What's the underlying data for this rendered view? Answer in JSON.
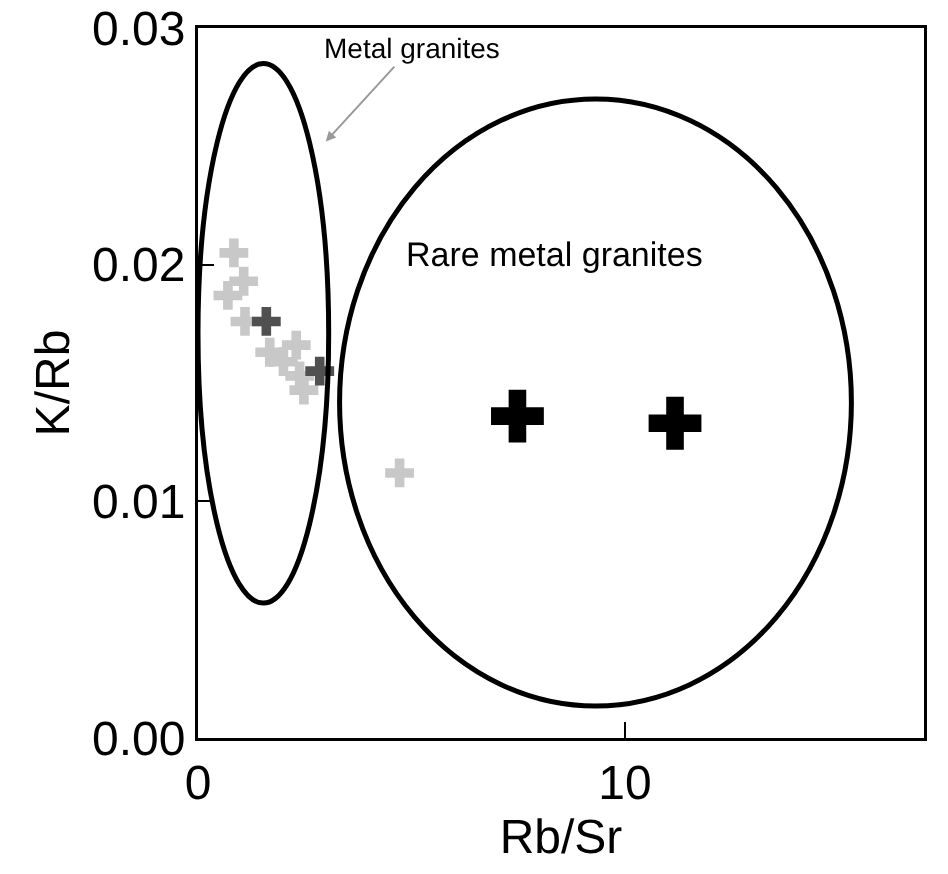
{
  "chart_data": {
    "type": "scatter",
    "xlabel": "Rb/Sr",
    "ylabel": "K/Rb",
    "xlim": [
      0,
      17
    ],
    "xticks": [
      0,
      10
    ],
    "ylim": [
      0,
      0.03
    ],
    "yticks": [
      {
        "value": 0,
        "label": "0.00"
      },
      {
        "value": 0.01,
        "label": "0.01"
      },
      {
        "value": 0.02,
        "label": "0.02"
      },
      {
        "value": 0.03,
        "label": "0.03"
      }
    ],
    "grid": false,
    "marker": "cross",
    "series": [
      {
        "color": "#c8c8c8",
        "x": [
          0.84,
          1.07,
          0.7,
          1.1,
          1.68,
          2.0,
          2.38,
          2.48,
          2.3,
          4.72
        ],
        "values": [
          0.0205,
          0.0193,
          0.0187,
          0.0176,
          0.0163,
          0.0159,
          0.0153,
          0.0147,
          0.0166,
          0.0112
        ]
      },
      {
        "color": "#505050",
        "x": [
          1.6,
          2.85
        ],
        "values": [
          0.0176,
          0.0155
        ]
      },
      {
        "color": "#000000",
        "x": [
          7.48,
          11.17
        ],
        "values": [
          0.0136,
          0.0133
        ]
      }
    ],
    "annotations": [
      "Metal granites",
      "Rare metal granites"
    ]
  }
}
